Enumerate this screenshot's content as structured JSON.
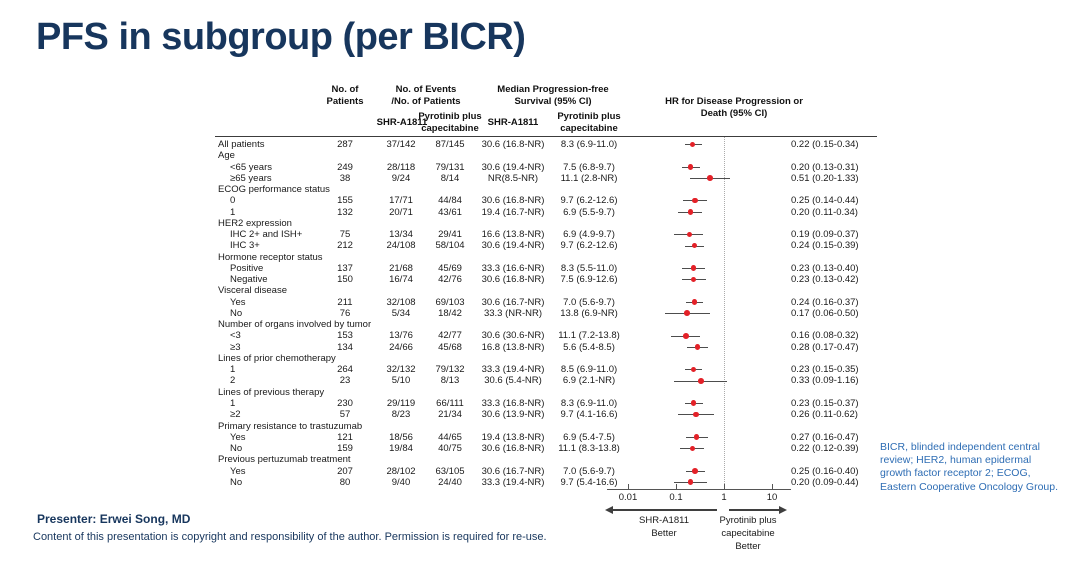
{
  "slide": {
    "title": "PFS in subgroup (per BICR)",
    "presenter": "Presenter: Erwei Song, MD",
    "copyright": "Content of this presentation is copyright and responsibility of the author. Permission is required for re-use.",
    "abbreviations": "BICR, blinded independent central\nreview; HER2, human epidermal\ngrowth factor receptor 2; ECOG,\nEastern Cooperative Oncology Group."
  },
  "colors": {
    "title_navy": "#17365d",
    "footnote_blue": "#2e6db4",
    "marker_red": "#e32128",
    "ci_line": "#4d4d4d",
    "axis_gray": "#555555"
  },
  "chart_data": {
    "type": "table",
    "subtype": "forest-plot",
    "x_scale": "log",
    "x_ticks": [
      "0.01",
      "0.1",
      "1",
      "10"
    ],
    "x_tick_values": [
      0.01,
      0.1,
      1,
      10
    ],
    "reference_line": 1,
    "axis_left_label": "SHR-A1811\nBetter",
    "axis_right_label": "Pyrotinib plus\ncapecitabine\nBetter",
    "headers": {
      "patients": "No. of\nPatients",
      "events": "No. of Events\n/No. of Patients",
      "median": "Median Progression-free\nSurvival (95% CI)",
      "hr": "HR for Disease Progression or\nDeath (95% CI)",
      "arm1": "SHR-A1811",
      "arm2": "Pyrotinib plus\ncapecitabine"
    },
    "rows": [
      {
        "label": "All patients",
        "indent": false,
        "n": "287",
        "e1": "37/142",
        "e2": "87/145",
        "m1": "30.6 (16.8-NR)",
        "m2": "8.3 (6.9-11.0)",
        "hr": 0.22,
        "lo": 0.15,
        "hi": 0.34,
        "hr_text": "0.22 (0.15-0.34)"
      },
      {
        "label": "Age",
        "group": true
      },
      {
        "label": "<65 years",
        "indent": true,
        "n": "249",
        "e1": "28/118",
        "e2": "79/131",
        "m1": "30.6 (19.4-NR)",
        "m2": "7.5 (6.8-9.7)",
        "hr": 0.2,
        "lo": 0.13,
        "hi": 0.31,
        "hr_text": "0.20 (0.13-0.31)"
      },
      {
        "label": "≥65 years",
        "indent": true,
        "n": "38",
        "e1": "9/24",
        "e2": "8/14",
        "m1": "NR(8.5-NR)",
        "m2": "11.1 (2.8-NR)",
        "hr": 0.51,
        "lo": 0.2,
        "hi": 1.33,
        "hr_text": "0.51 (0.20-1.33)"
      },
      {
        "label": "ECOG performance status",
        "group": true
      },
      {
        "label": "0",
        "indent": true,
        "n": "155",
        "e1": "17/71",
        "e2": "44/84",
        "m1": "30.6 (16.8-NR)",
        "m2": "9.7 (6.2-12.6)",
        "hr": 0.25,
        "lo": 0.14,
        "hi": 0.44,
        "hr_text": "0.25 (0.14-0.44)"
      },
      {
        "label": "1",
        "indent": true,
        "n": "132",
        "e1": "20/71",
        "e2": "43/61",
        "m1": "19.4 (16.7-NR)",
        "m2": "6.9 (5.5-9.7)",
        "hr": 0.2,
        "lo": 0.11,
        "hi": 0.34,
        "hr_text": "0.20 (0.11-0.34)"
      },
      {
        "label": "HER2 expression",
        "group": true
      },
      {
        "label": "IHC 2+ and ISH+",
        "indent": true,
        "n": "75",
        "e1": "13/34",
        "e2": "29/41",
        "m1": "16.6 (13.8-NR)",
        "m2": "6.9 (4.9-9.7)",
        "hr": 0.19,
        "lo": 0.09,
        "hi": 0.37,
        "hr_text": "0.19 (0.09-0.37)"
      },
      {
        "label": "IHC 3+",
        "indent": true,
        "n": "212",
        "e1": "24/108",
        "e2": "58/104",
        "m1": "30.6 (19.4-NR)",
        "m2": "9.7 (6.2-12.6)",
        "hr": 0.24,
        "lo": 0.15,
        "hi": 0.39,
        "hr_text": "0.24 (0.15-0.39)"
      },
      {
        "label": "Hormone receptor status",
        "group": true
      },
      {
        "label": "Positive",
        "indent": true,
        "n": "137",
        "e1": "21/68",
        "e2": "45/69",
        "m1": "33.3 (16.6-NR)",
        "m2": "8.3 (5.5-11.0)",
        "hr": 0.23,
        "lo": 0.13,
        "hi": 0.4,
        "hr_text": "0.23 (0.13-0.40)"
      },
      {
        "label": "Negative",
        "indent": true,
        "n": "150",
        "e1": "16/74",
        "e2": "42/76",
        "m1": "30.6 (16.8-NR)",
        "m2": "7.5 (6.9-12.6)",
        "hr": 0.23,
        "lo": 0.13,
        "hi": 0.42,
        "hr_text": "0.23 (0.13-0.42)"
      },
      {
        "label": "Visceral disease",
        "group": true
      },
      {
        "label": "Yes",
        "indent": true,
        "n": "211",
        "e1": "32/108",
        "e2": "69/103",
        "m1": "30.6 (16.7-NR)",
        "m2": "7.0 (5.6-9.7)",
        "hr": 0.24,
        "lo": 0.16,
        "hi": 0.37,
        "hr_text": "0.24 (0.16-0.37)"
      },
      {
        "label": "No",
        "indent": true,
        "n": "76",
        "e1": "5/34",
        "e2": "18/42",
        "m1": "33.3 (NR-NR)",
        "m2": "13.8 (6.9-NR)",
        "hr": 0.17,
        "lo": 0.06,
        "hi": 0.5,
        "hr_text": "0.17 (0.06-0.50)"
      },
      {
        "label": "Number of organs involved by tumor",
        "group": true
      },
      {
        "label": "<3",
        "indent": true,
        "n": "153",
        "e1": "13/76",
        "e2": "42/77",
        "m1": "30.6 (30.6-NR)",
        "m2": "11.1 (7.2-13.8)",
        "hr": 0.16,
        "lo": 0.08,
        "hi": 0.32,
        "hr_text": "0.16 (0.08-0.32)"
      },
      {
        "label": "≥3",
        "indent": true,
        "n": "134",
        "e1": "24/66",
        "e2": "45/68",
        "m1": "16.8 (13.8-NR)",
        "m2": "5.6 (5.4-8.5)",
        "hr": 0.28,
        "lo": 0.17,
        "hi": 0.47,
        "hr_text": "0.28 (0.17-0.47)"
      },
      {
        "label": "Lines of prior chemotherapy",
        "group": true
      },
      {
        "label": "1",
        "indent": true,
        "n": "264",
        "e1": "32/132",
        "e2": "79/132",
        "m1": "33.3 (19.4-NR)",
        "m2": "8.5 (6.9-11.0)",
        "hr": 0.23,
        "lo": 0.15,
        "hi": 0.35,
        "hr_text": "0.23 (0.15-0.35)"
      },
      {
        "label": "2",
        "indent": true,
        "n": "23",
        "e1": "5/10",
        "e2": "8/13",
        "m1": "30.6 (5.4-NR)",
        "m2": "6.9 (2.1-NR)",
        "hr": 0.33,
        "lo": 0.09,
        "hi": 1.16,
        "hr_text": "0.33 (0.09-1.16)"
      },
      {
        "label": "Lines of previous therapy",
        "group": true
      },
      {
        "label": "1",
        "indent": true,
        "n": "230",
        "e1": "29/119",
        "e2": "66/111",
        "m1": "33.3 (16.8-NR)",
        "m2": "8.3 (6.9-11.0)",
        "hr": 0.23,
        "lo": 0.15,
        "hi": 0.37,
        "hr_text": "0.23 (0.15-0.37)"
      },
      {
        "label": "≥2",
        "indent": true,
        "n": "57",
        "e1": "8/23",
        "e2": "21/34",
        "m1": "30.6 (13.9-NR)",
        "m2": "9.7 (4.1-16.6)",
        "hr": 0.26,
        "lo": 0.11,
        "hi": 0.62,
        "hr_text": "0.26 (0.11-0.62)"
      },
      {
        "label": "Primary resistance to trastuzumab",
        "group": true
      },
      {
        "label": "Yes",
        "indent": true,
        "n": "121",
        "e1": "18/56",
        "e2": "44/65",
        "m1": "19.4 (13.8-NR)",
        "m2": "6.9 (5.4-7.5)",
        "hr": 0.27,
        "lo": 0.16,
        "hi": 0.47,
        "hr_text": "0.27 (0.16-0.47)"
      },
      {
        "label": "No",
        "indent": true,
        "n": "159",
        "e1": "19/84",
        "e2": "40/75",
        "m1": "30.6 (16.8-NR)",
        "m2": "11.1 (8.3-13.8)",
        "hr": 0.22,
        "lo": 0.12,
        "hi": 0.39,
        "hr_text": "0.22 (0.12-0.39)"
      },
      {
        "label": "Previous pertuzumab treatment",
        "group": true
      },
      {
        "label": "Yes",
        "indent": true,
        "n": "207",
        "e1": "28/102",
        "e2": "63/105",
        "m1": "30.6 (16.7-NR)",
        "m2": "7.0 (5.6-9.7)",
        "hr": 0.25,
        "lo": 0.16,
        "hi": 0.4,
        "hr_text": "0.25 (0.16-0.40)"
      },
      {
        "label": "No",
        "indent": true,
        "n": "80",
        "e1": "9/40",
        "e2": "24/40",
        "m1": "33.3 (19.4-NR)",
        "m2": "9.7 (5.4-16.6)",
        "hr": 0.2,
        "lo": 0.09,
        "hi": 0.44,
        "hr_text": "0.20 (0.09-0.44)"
      }
    ]
  }
}
